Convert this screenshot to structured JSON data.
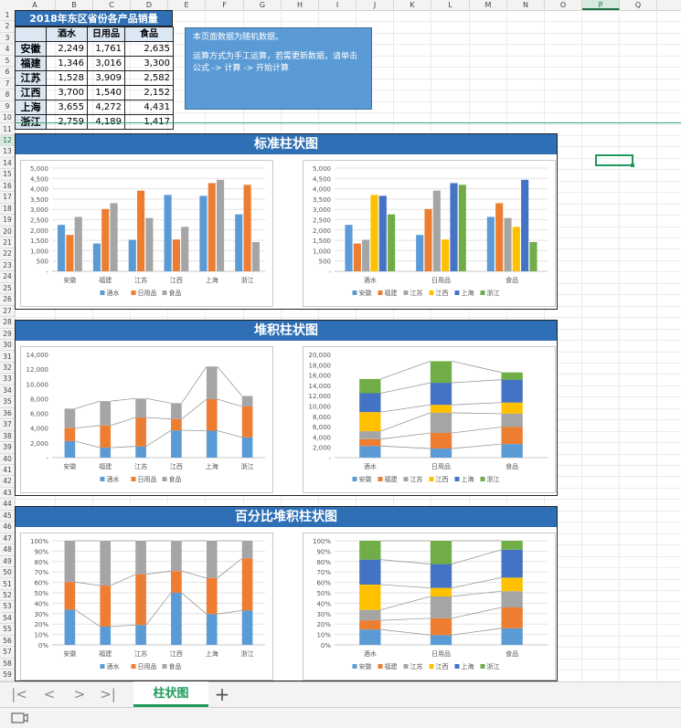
{
  "columns": [
    "A",
    "B",
    "C",
    "D",
    "E",
    "F",
    "G",
    "H",
    "I",
    "J",
    "K",
    "L",
    "M",
    "N",
    "O",
    "P",
    "Q"
  ],
  "selected_column": "P",
  "rows": [
    "1",
    "2",
    "3",
    "4",
    "5",
    "6",
    "7",
    "8",
    "9",
    "10",
    "11",
    "12",
    "13",
    "14",
    "15",
    "16",
    "17",
    "18",
    "19",
    "20",
    "21",
    "22",
    "23",
    "24",
    "25",
    "26",
    "27",
    "28",
    "29",
    "30",
    "31",
    "32",
    "33",
    "34",
    "35",
    "36",
    "37",
    "38",
    "39",
    "40",
    "41",
    "42",
    "43",
    "44",
    "45",
    "46",
    "47",
    "48",
    "49",
    "50",
    "51",
    "52",
    "53",
    "54",
    "55",
    "56",
    "57",
    "58",
    "59"
  ],
  "selected_row": "12",
  "table": {
    "title": "2018年东区省份各产品销量",
    "headers": [
      "",
      "酒水",
      "日用品",
      "食品"
    ],
    "rows": [
      {
        "region": "安徽",
        "values": [
          "2,249",
          "1,761",
          "2,635"
        ]
      },
      {
        "region": "福建",
        "values": [
          "1,346",
          "3,016",
          "3,300"
        ]
      },
      {
        "region": "江苏",
        "values": [
          "1,528",
          "3,909",
          "2,582"
        ]
      },
      {
        "region": "江西",
        "values": [
          "3,700",
          "1,540",
          "2,152"
        ]
      },
      {
        "region": "上海",
        "values": [
          "3,655",
          "4,272",
          "4,431"
        ]
      },
      {
        "region": "浙江",
        "values": [
          "2,759",
          "4,189",
          "1,417"
        ]
      }
    ]
  },
  "note": {
    "line1": "本页面数据为随机数据。",
    "line2": "运算方式为手工运算，若需更新数据，请单击公式 -> 计算 -> 开始计算"
  },
  "sections": [
    {
      "title": "标准柱状图"
    },
    {
      "title": "堆积柱状图"
    },
    {
      "title": "百分比堆积柱状图"
    }
  ],
  "colors": {
    "blue": "#5b9bd5",
    "orange": "#ed7d31",
    "gray": "#a5a5a5",
    "yellow": "#ffc000",
    "darkblue": "#4472c4",
    "green": "#70ad47",
    "header_blue": "#2e6fb5",
    "select_green": "#1e9a5a"
  },
  "chart_data": [
    {
      "type": "bar",
      "mode": "clustered",
      "categories": [
        "安徽",
        "福建",
        "江苏",
        "江西",
        "上海",
        "浙江"
      ],
      "series": [
        {
          "name": "酒水",
          "values": [
            2249,
            1346,
            1528,
            3700,
            3655,
            2759
          ]
        },
        {
          "name": "日用品",
          "values": [
            1761,
            3016,
            3909,
            1540,
            4272,
            4189
          ]
        },
        {
          "name": "食品",
          "values": [
            2635,
            3300,
            2582,
            2152,
            4431,
            1417
          ]
        }
      ],
      "ylim": [
        0,
        5000
      ],
      "yticks": [
        "-",
        "500",
        "1,000",
        "1,500",
        "2,000",
        "2,500",
        "3,000",
        "3,500",
        "4,000",
        "4,500",
        "5,000"
      ],
      "grid": true,
      "legend": "bottom"
    },
    {
      "type": "bar",
      "mode": "clustered",
      "categories": [
        "酒水",
        "日用品",
        "食品"
      ],
      "series": [
        {
          "name": "安徽",
          "values": [
            2249,
            1761,
            2635
          ]
        },
        {
          "name": "福建",
          "values": [
            1346,
            3016,
            3300
          ]
        },
        {
          "name": "江苏",
          "values": [
            1528,
            3909,
            2582
          ]
        },
        {
          "name": "江西",
          "values": [
            3700,
            1540,
            2152
          ]
        },
        {
          "name": "上海",
          "values": [
            3655,
            4272,
            4431
          ]
        },
        {
          "name": "浙江",
          "values": [
            2759,
            4189,
            1417
          ]
        }
      ],
      "ylim": [
        0,
        5000
      ],
      "yticks": [
        "-",
        "500",
        "1,000",
        "1,500",
        "2,000",
        "2,500",
        "3,000",
        "3,500",
        "4,000",
        "4,500",
        "5,000"
      ],
      "grid": true,
      "legend": "bottom"
    },
    {
      "type": "bar",
      "mode": "stacked",
      "categories": [
        "安徽",
        "福建",
        "江苏",
        "江西",
        "上海",
        "浙江"
      ],
      "series": [
        {
          "name": "酒水",
          "values": [
            2249,
            1346,
            1528,
            3700,
            3655,
            2759
          ]
        },
        {
          "name": "日用品",
          "values": [
            1761,
            3016,
            3909,
            1540,
            4272,
            4189
          ]
        },
        {
          "name": "食品",
          "values": [
            2635,
            3300,
            2582,
            2152,
            4431,
            1417
          ]
        }
      ],
      "ylim": [
        0,
        14000
      ],
      "yticks": [
        "-",
        "2,000",
        "4,000",
        "6,000",
        "8,000",
        "10,000",
        "12,000",
        "14,000"
      ],
      "series_lines": true,
      "legend": "bottom"
    },
    {
      "type": "bar",
      "mode": "stacked",
      "categories": [
        "酒水",
        "日用品",
        "食品"
      ],
      "series": [
        {
          "name": "安徽",
          "values": [
            2249,
            1761,
            2635
          ]
        },
        {
          "name": "福建",
          "values": [
            1346,
            3016,
            3300
          ]
        },
        {
          "name": "江苏",
          "values": [
            1528,
            3909,
            2582
          ]
        },
        {
          "name": "江西",
          "values": [
            3700,
            1540,
            2152
          ]
        },
        {
          "name": "上海",
          "values": [
            3655,
            4272,
            4431
          ]
        },
        {
          "name": "浙江",
          "values": [
            2759,
            4189,
            1417
          ]
        }
      ],
      "ylim": [
        0,
        20000
      ],
      "yticks": [
        "-",
        "2,000",
        "4,000",
        "6,000",
        "8,000",
        "10,000",
        "12,000",
        "14,000",
        "16,000",
        "18,000",
        "20,000"
      ],
      "series_lines": true,
      "legend": "bottom"
    },
    {
      "type": "bar",
      "mode": "percent",
      "categories": [
        "安徽",
        "福建",
        "江苏",
        "江西",
        "上海",
        "浙江"
      ],
      "series": [
        {
          "name": "酒水",
          "values": [
            2249,
            1346,
            1528,
            3700,
            3655,
            2759
          ]
        },
        {
          "name": "日用品",
          "values": [
            1761,
            3016,
            3909,
            1540,
            4272,
            4189
          ]
        },
        {
          "name": "食品",
          "values": [
            2635,
            3300,
            2582,
            2152,
            4431,
            1417
          ]
        }
      ],
      "ylim": [
        0,
        100
      ],
      "yticks": [
        "0%",
        "10%",
        "20%",
        "30%",
        "40%",
        "50%",
        "60%",
        "70%",
        "80%",
        "90%",
        "100%"
      ],
      "series_lines": true,
      "legend": "bottom"
    },
    {
      "type": "bar",
      "mode": "percent",
      "categories": [
        "酒水",
        "日用品",
        "食品"
      ],
      "series": [
        {
          "name": "安徽",
          "values": [
            2249,
            1761,
            2635
          ]
        },
        {
          "name": "福建",
          "values": [
            1346,
            3016,
            3300
          ]
        },
        {
          "name": "江苏",
          "values": [
            1528,
            3909,
            2582
          ]
        },
        {
          "name": "江西",
          "values": [
            3700,
            1540,
            2152
          ]
        },
        {
          "name": "上海",
          "values": [
            3655,
            4272,
            4431
          ]
        },
        {
          "name": "浙江",
          "values": [
            2759,
            4189,
            1417
          ]
        }
      ],
      "ylim": [
        0,
        100
      ],
      "yticks": [
        "0%",
        "10%",
        "20%",
        "30%",
        "40%",
        "50%",
        "60%",
        "70%",
        "80%",
        "90%",
        "100%"
      ],
      "series_lines": true,
      "legend": "bottom"
    }
  ],
  "sheet_tab": {
    "label": "柱状图",
    "add_icon": "plus-icon"
  },
  "nav_icons": [
    "first-sheet-icon",
    "prev-sheet-icon",
    "next-sheet-icon",
    "last-sheet-icon"
  ],
  "nav_glyphs": [
    "|<",
    "<",
    ">",
    ">|"
  ]
}
